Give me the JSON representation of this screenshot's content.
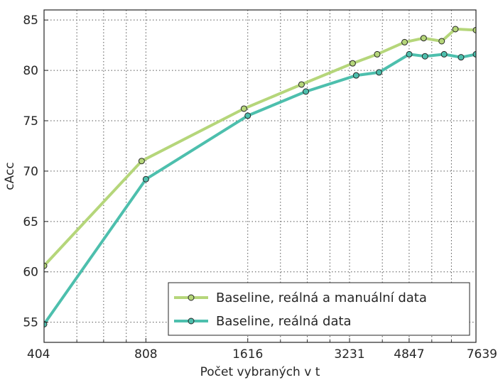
{
  "chart_data": {
    "type": "line",
    "xscale": "log",
    "xlabel": "Počet vybraných v t",
    "ylabel": "cAcc",
    "xlim": [
      404,
      7639
    ],
    "ylim": [
      53,
      86
    ],
    "x_ticks": [
      404,
      808,
      1616,
      3231,
      4847,
      7639
    ],
    "x_minor_ticks": [
      505,
      606,
      707,
      2019,
      2423,
      2827,
      4039,
      5655,
      6463
    ],
    "y_ticks": [
      55,
      60,
      65,
      70,
      75,
      80,
      85
    ],
    "grid": true,
    "legend_position": "lower-right",
    "series": [
      {
        "name": "Baseline, reálná a manuální data",
        "color": "#b5d67a",
        "x": [
          404,
          785,
          1575,
          2330,
          3300,
          3900,
          4700,
          5350,
          6050,
          6640,
          7639
        ],
        "y": [
          60.6,
          71.0,
          76.2,
          78.6,
          80.7,
          81.6,
          82.8,
          83.2,
          82.9,
          84.1,
          84.0
        ]
      },
      {
        "name": "Baseline, reálná data",
        "color": "#4dbfad",
        "x": [
          404,
          808,
          1616,
          2400,
          3380,
          3950,
          4850,
          5400,
          6150,
          6900,
          7639
        ],
        "y": [
          54.8,
          69.2,
          75.5,
          77.9,
          79.5,
          79.8,
          81.6,
          81.4,
          81.6,
          81.3,
          81.6
        ]
      }
    ]
  }
}
